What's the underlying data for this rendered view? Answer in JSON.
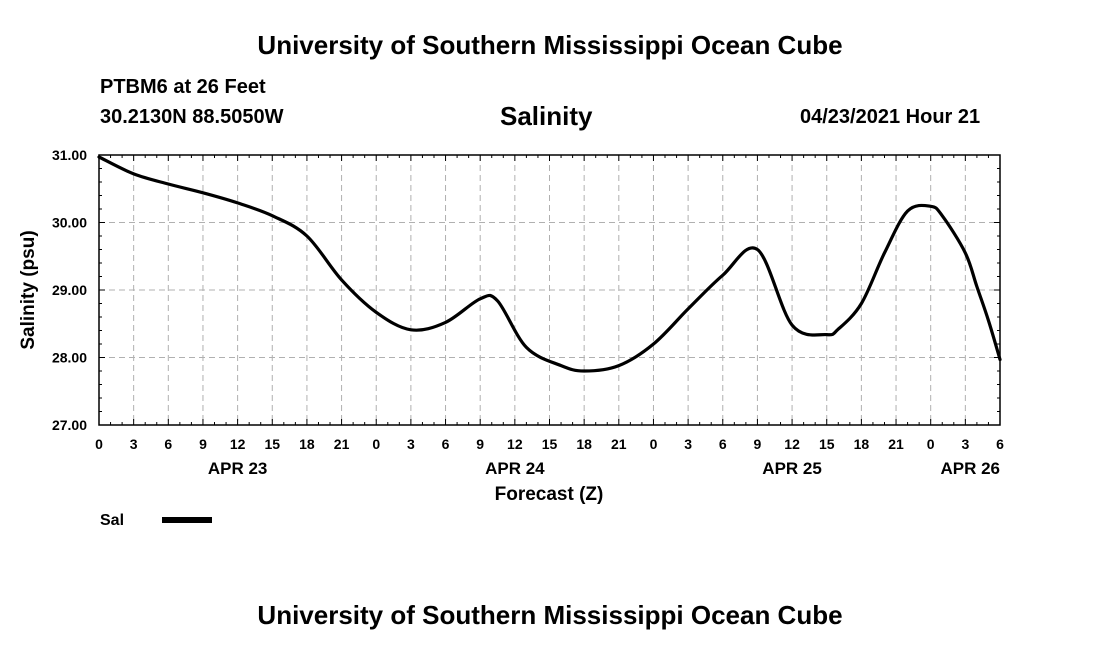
{
  "header": {
    "top_title": "University of Southern Mississippi Ocean Cube",
    "station": "PTBM6 at 26 Feet",
    "coords": "30.2130N  88.5050W",
    "chart_title": "Salinity",
    "datetime": "04/23/2021 Hour 21",
    "bottom_title": "University of Southern Mississippi Ocean Cube"
  },
  "chart_data": {
    "type": "line",
    "title": "Salinity",
    "xlabel": "Forecast (Z)",
    "ylabel": "Salinity (psu)",
    "ylim": [
      27.0,
      31.0
    ],
    "xlim_hours": [
      0,
      78
    ],
    "grid": true,
    "y_ticks": [
      "27.00",
      "28.00",
      "29.00",
      "30.00",
      "31.00"
    ],
    "x_ticks": [
      "0",
      "3",
      "6",
      "9",
      "12",
      "15",
      "18",
      "21",
      "0",
      "3",
      "6",
      "9",
      "12",
      "15",
      "18",
      "21",
      "0",
      "3",
      "6",
      "9",
      "12",
      "15",
      "18",
      "21",
      "0",
      "3",
      "6"
    ],
    "date_labels": [
      "APR 23",
      "APR 24",
      "APR 25",
      "APR 26"
    ],
    "legend_position": "bottom-left",
    "series": [
      {
        "name": "Sal",
        "color": "#000000",
        "x_hours": [
          0,
          3,
          6,
          9,
          12,
          15,
          18,
          21,
          24,
          27,
          30,
          33,
          34.5,
          37,
          40,
          42,
          45,
          48,
          51,
          54,
          57,
          60,
          63,
          64,
          66,
          68,
          70,
          72,
          73,
          75,
          76,
          77,
          78
        ],
        "values": [
          30.97,
          30.72,
          30.57,
          30.44,
          30.29,
          30.1,
          29.8,
          29.15,
          28.67,
          28.41,
          28.52,
          28.87,
          28.84,
          28.15,
          27.88,
          27.8,
          27.88,
          28.2,
          28.72,
          29.22,
          29.6,
          28.48,
          28.34,
          28.42,
          28.8,
          29.55,
          30.17,
          30.24,
          30.1,
          29.55,
          29.05,
          28.55,
          27.97
        ]
      }
    ]
  }
}
